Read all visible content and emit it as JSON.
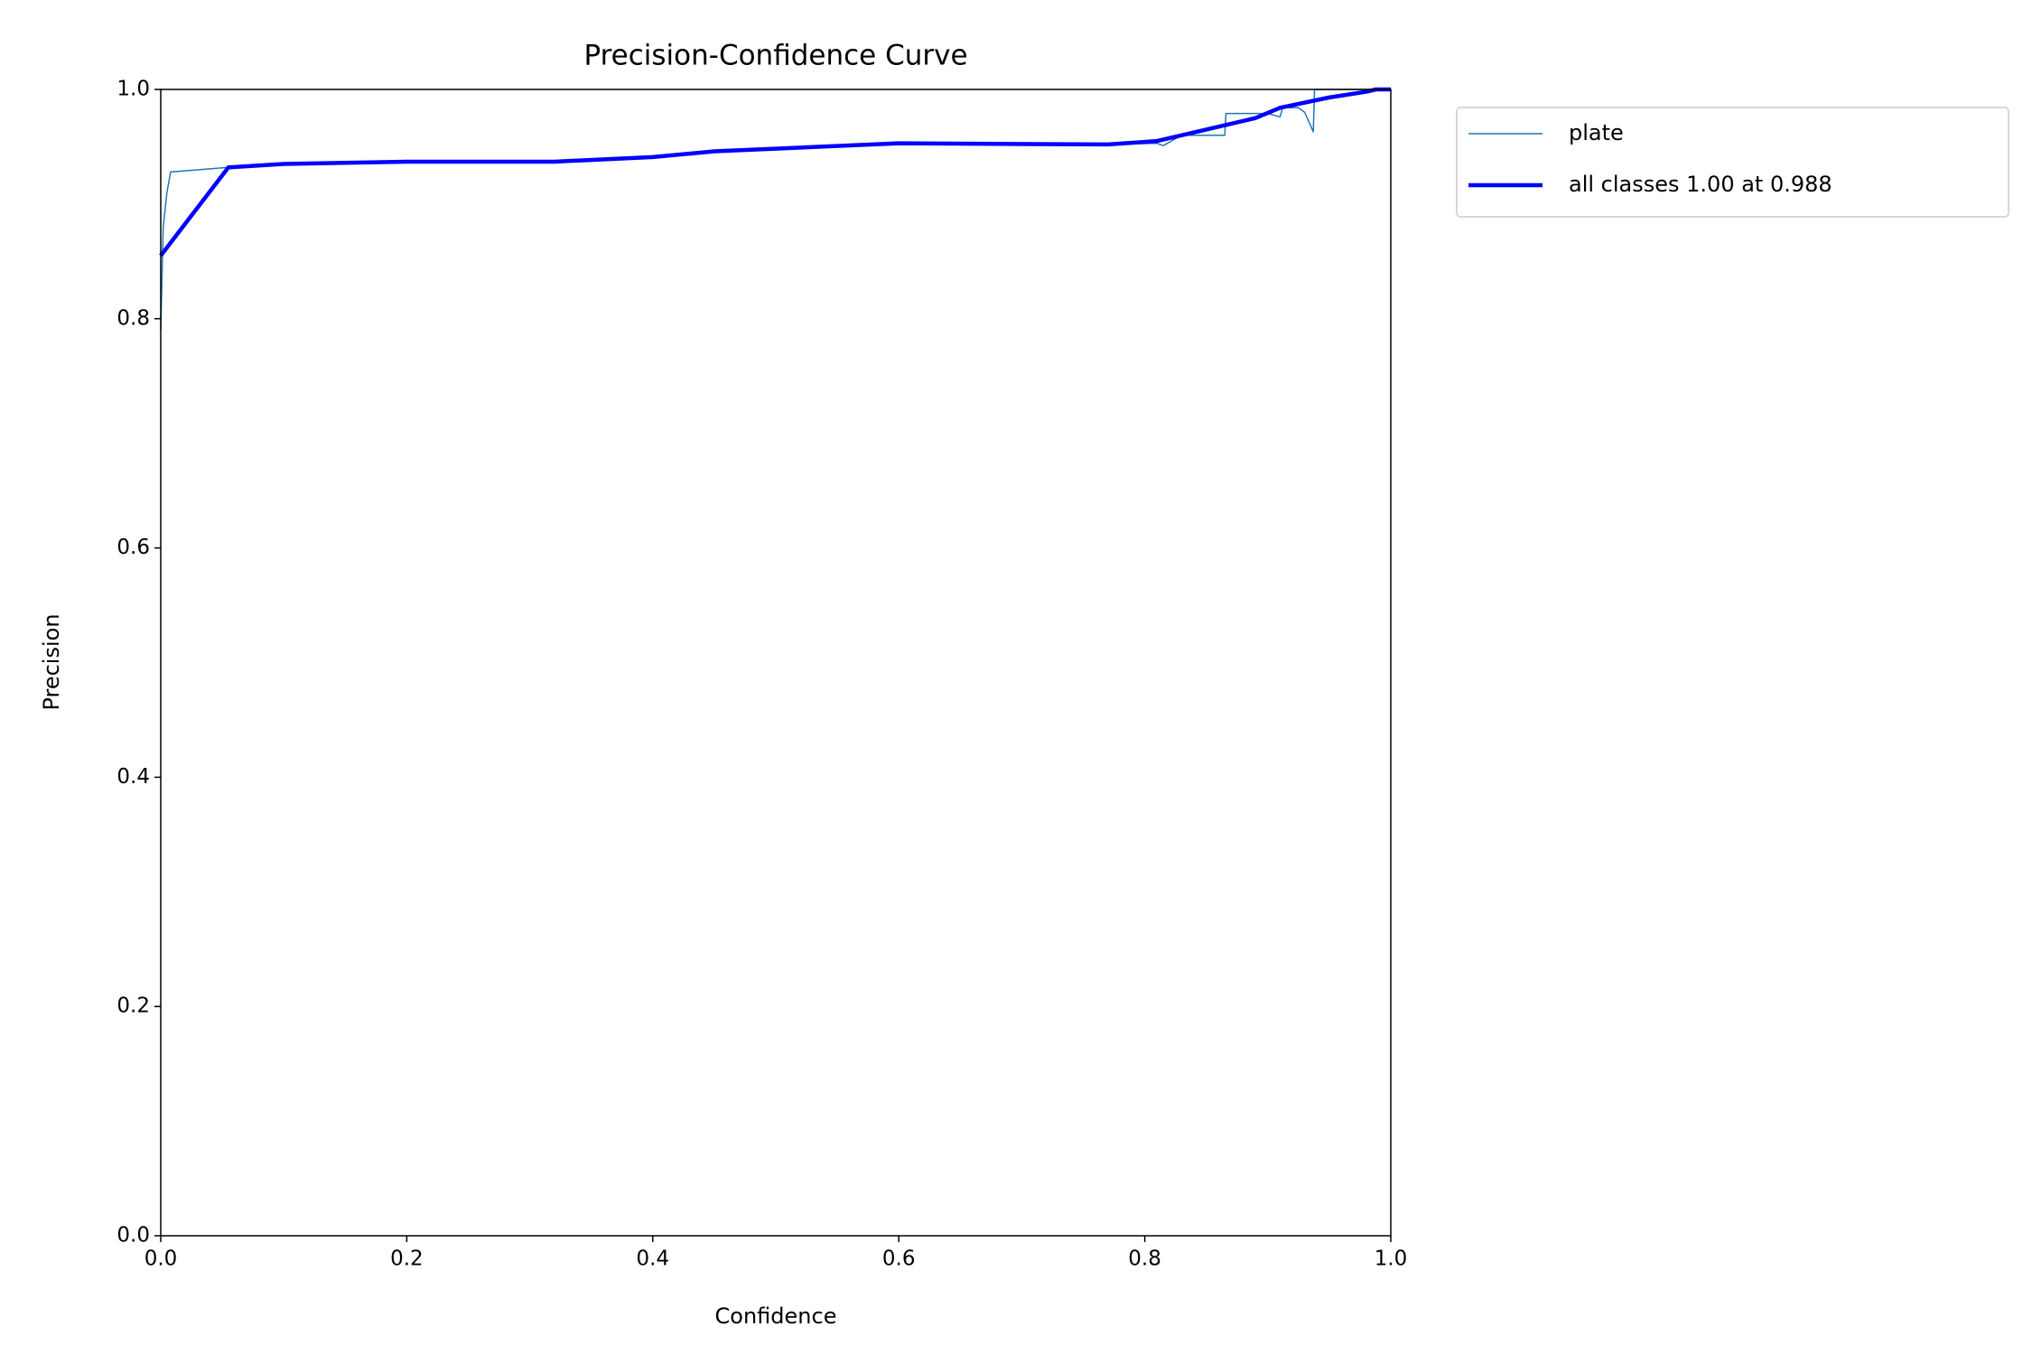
{
  "chart_data": {
    "type": "line",
    "title": "Precision-Confidence Curve",
    "x_label": "Confidence",
    "y_label": "Precision",
    "xlim": [
      0,
      1
    ],
    "ylim": [
      0,
      1
    ],
    "xticks": [
      {
        "value": 0,
        "label": "0.0"
      },
      0.2,
      0.4,
      0.6,
      0.8,
      {
        "value": 1,
        "label": "1.0"
      }
    ],
    "yticks": [
      {
        "value": 0,
        "label": "0.0"
      },
      0.2,
      0.4,
      0.6,
      0.8,
      {
        "value": 1,
        "label": "1.0"
      }
    ],
    "grid": false,
    "legend": "outside upper right",
    "series": [
      {
        "name": "plate",
        "color": "#1f77b4",
        "width": 1.5,
        "x": [
          0,
          0.002,
          0.005,
          0.008,
          0.055,
          0.1,
          0.2,
          0.32,
          0.4,
          0.45,
          0.6,
          0.77,
          0.81,
          0.815,
          0.83,
          0.865,
          0.866,
          0.9,
          0.91,
          0.912,
          0.925,
          0.93,
          0.937,
          0.938,
          1.0
        ],
        "values": [
          0.79,
          0.88,
          0.91,
          0.928,
          0.932,
          0.935,
          0.937,
          0.937,
          0.941,
          0.946,
          0.953,
          0.952,
          0.953,
          0.951,
          0.96,
          0.96,
          0.979,
          0.979,
          0.976,
          0.984,
          0.984,
          0.98,
          0.963,
          1.0,
          1.0
        ]
      },
      {
        "name": "all classes 1.00 at 0.988",
        "color": "#0000ff",
        "width": 4.5,
        "x": [
          0,
          0.055,
          0.1,
          0.2,
          0.32,
          0.4,
          0.45,
          0.6,
          0.77,
          0.81,
          0.85,
          0.89,
          0.91,
          0.95,
          0.98,
          0.988,
          1.0
        ],
        "values": [
          0.855,
          0.932,
          0.935,
          0.937,
          0.937,
          0.941,
          0.946,
          0.953,
          0.952,
          0.955,
          0.965,
          0.975,
          0.984,
          0.993,
          0.998,
          1.0,
          1.0
        ]
      }
    ]
  }
}
